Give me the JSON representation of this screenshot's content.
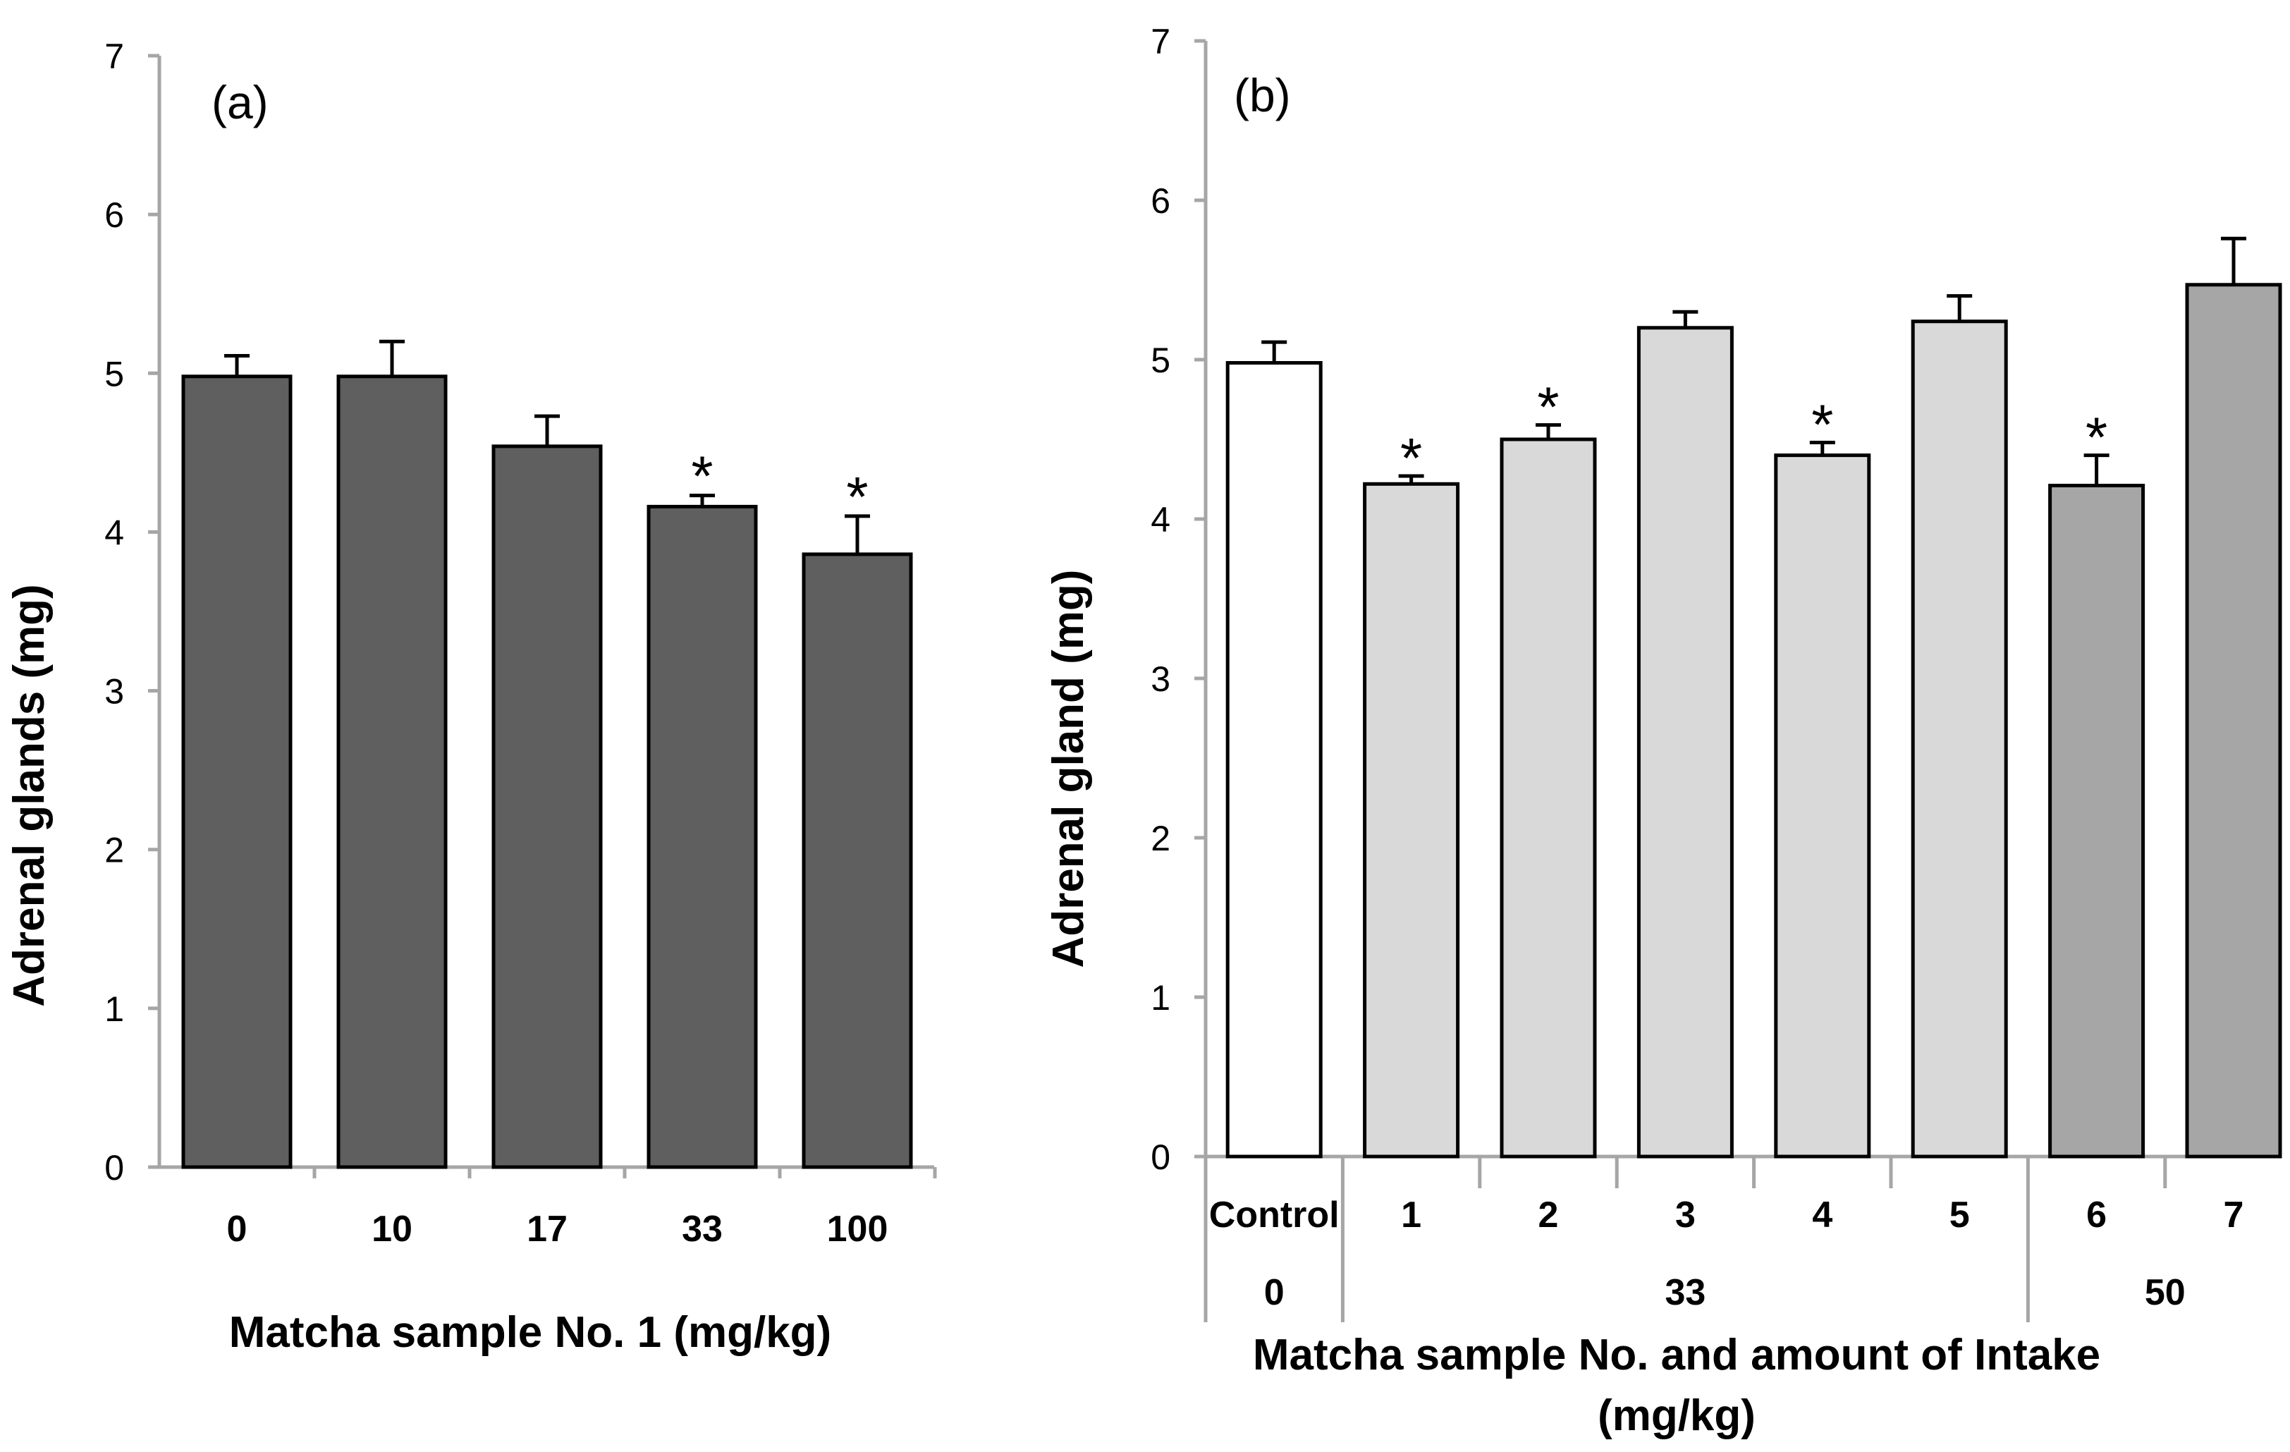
{
  "chart_data": [
    {
      "type": "bar",
      "panel_label": "(a)",
      "ylabel": "Adrenal glands (mg)",
      "xlabel": "Matcha sample No. 1 (mg/kg)",
      "ylim": [
        0,
        7
      ],
      "yticks": [
        "0",
        "1",
        "2",
        "3",
        "4",
        "5",
        "6",
        "7"
      ],
      "categories": [
        "0",
        "10",
        "17",
        "33",
        "100"
      ],
      "values": [
        4.98,
        4.98,
        4.54,
        4.16,
        3.86
      ],
      "errors": [
        0.13,
        0.22,
        0.19,
        0.07,
        0.24
      ],
      "significance": [
        "",
        "",
        "",
        "*",
        "*"
      ],
      "colors": [
        "#5f5f5f",
        "#5f5f5f",
        "#5f5f5f",
        "#5f5f5f",
        "#5f5f5f"
      ]
    },
    {
      "type": "bar",
      "panel_label": "(b)",
      "ylabel": "Adrenal gland (mg)",
      "xlabel": "Matcha sample No. and amount of Intake",
      "xlabel_line2": "(mg/kg)",
      "ylim": [
        0,
        7
      ],
      "yticks": [
        "0",
        "1",
        "2",
        "3",
        "4",
        "5",
        "6",
        "7"
      ],
      "categories": [
        "Control",
        "1",
        "2",
        "3",
        "4",
        "5",
        "6",
        "7"
      ],
      "values": [
        4.98,
        4.22,
        4.5,
        5.2,
        4.4,
        5.24,
        4.21,
        5.47
      ],
      "errors": [
        0.13,
        0.05,
        0.09,
        0.1,
        0.08,
        0.16,
        0.19,
        0.29
      ],
      "significance": [
        "",
        "*",
        "*",
        "",
        "*",
        "",
        "*",
        ""
      ],
      "colors": [
        "#ffffff",
        "#d9d9d9",
        "#d9d9d9",
        "#d9d9d9",
        "#d9d9d9",
        "#d9d9d9",
        "#a6a6a6",
        "#a6a6a6"
      ],
      "intake_groups": [
        {
          "label": "0",
          "span": [
            0,
            0
          ]
        },
        {
          "label": "33",
          "span": [
            1,
            5
          ]
        },
        {
          "label": "50",
          "span": [
            6,
            7
          ]
        }
      ]
    }
  ]
}
